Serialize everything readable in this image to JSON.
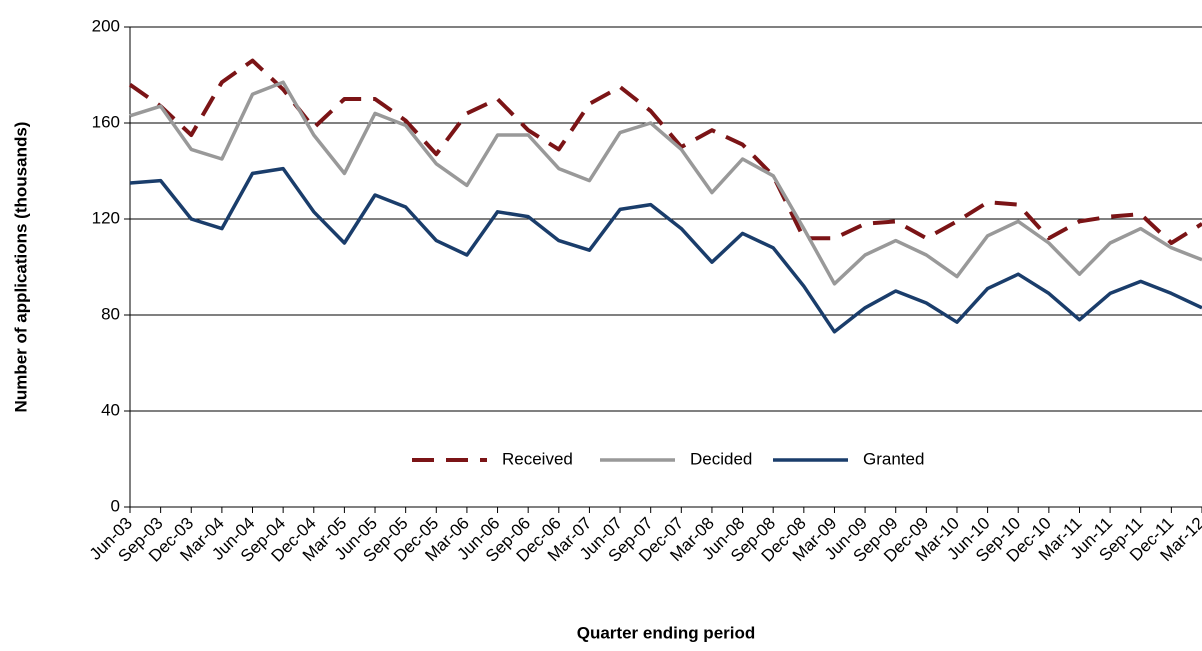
{
  "chart_data": {
    "type": "line",
    "y_label": "Number of applications (thousands)",
    "x_label": "Quarter ending period",
    "categories": [
      "Jun-03",
      "Sep-03",
      "Dec-03",
      "Mar-04",
      "Jun-04",
      "Sep-04",
      "Dec-04",
      "Mar-05",
      "Jun-05",
      "Sep-05",
      "Dec-05",
      "Mar-06",
      "Jun-06",
      "Sep-06",
      "Dec-06",
      "Mar-07",
      "Jun-07",
      "Sep-07",
      "Dec-07",
      "Mar-08",
      "Jun-08",
      "Sep-08",
      "Dec-08",
      "Mar-09",
      "Jun-09",
      "Sep-09",
      "Dec-09",
      "Mar-10",
      "Jun-10",
      "Sep-10",
      "Dec-10",
      "Mar-11",
      "Jun-11",
      "Sep-11",
      "Dec-11",
      "Mar-12"
    ],
    "series": [
      {
        "name": "Received",
        "color": "#7b1416",
        "dashed": true,
        "values": [
          176,
          167,
          155,
          177,
          186,
          174,
          158,
          170,
          170,
          161,
          147,
          164,
          170,
          157,
          149,
          168,
          175,
          165,
          150,
          157,
          151,
          138,
          112,
          112,
          118,
          119,
          112,
          119,
          127,
          126,
          112,
          119,
          121,
          122,
          110,
          118
        ]
      },
      {
        "name": "Decided",
        "color": "#999999",
        "dashed": false,
        "values": [
          163,
          167,
          149,
          145,
          172,
          177,
          155,
          139,
          164,
          159,
          143,
          134,
          155,
          155,
          141,
          136,
          156,
          160,
          149,
          131,
          145,
          138,
          116,
          93,
          105,
          111,
          105,
          96,
          113,
          119,
          110,
          97,
          110,
          116,
          108,
          103
        ]
      },
      {
        "name": "Granted",
        "color": "#1a3d6b",
        "dashed": false,
        "values": [
          135,
          136,
          120,
          116,
          139,
          141,
          123,
          110,
          130,
          125,
          111,
          105,
          123,
          121,
          111,
          107,
          124,
          126,
          116,
          102,
          114,
          108,
          92,
          73,
          83,
          90,
          85,
          77,
          91,
          97,
          89,
          78,
          89,
          94,
          89,
          83
        ]
      }
    ],
    "ylim": [
      0,
      200
    ],
    "yticks": [
      0,
      40,
      80,
      120,
      160,
      200
    ],
    "grid": true,
    "legend_position": "lower center"
  }
}
